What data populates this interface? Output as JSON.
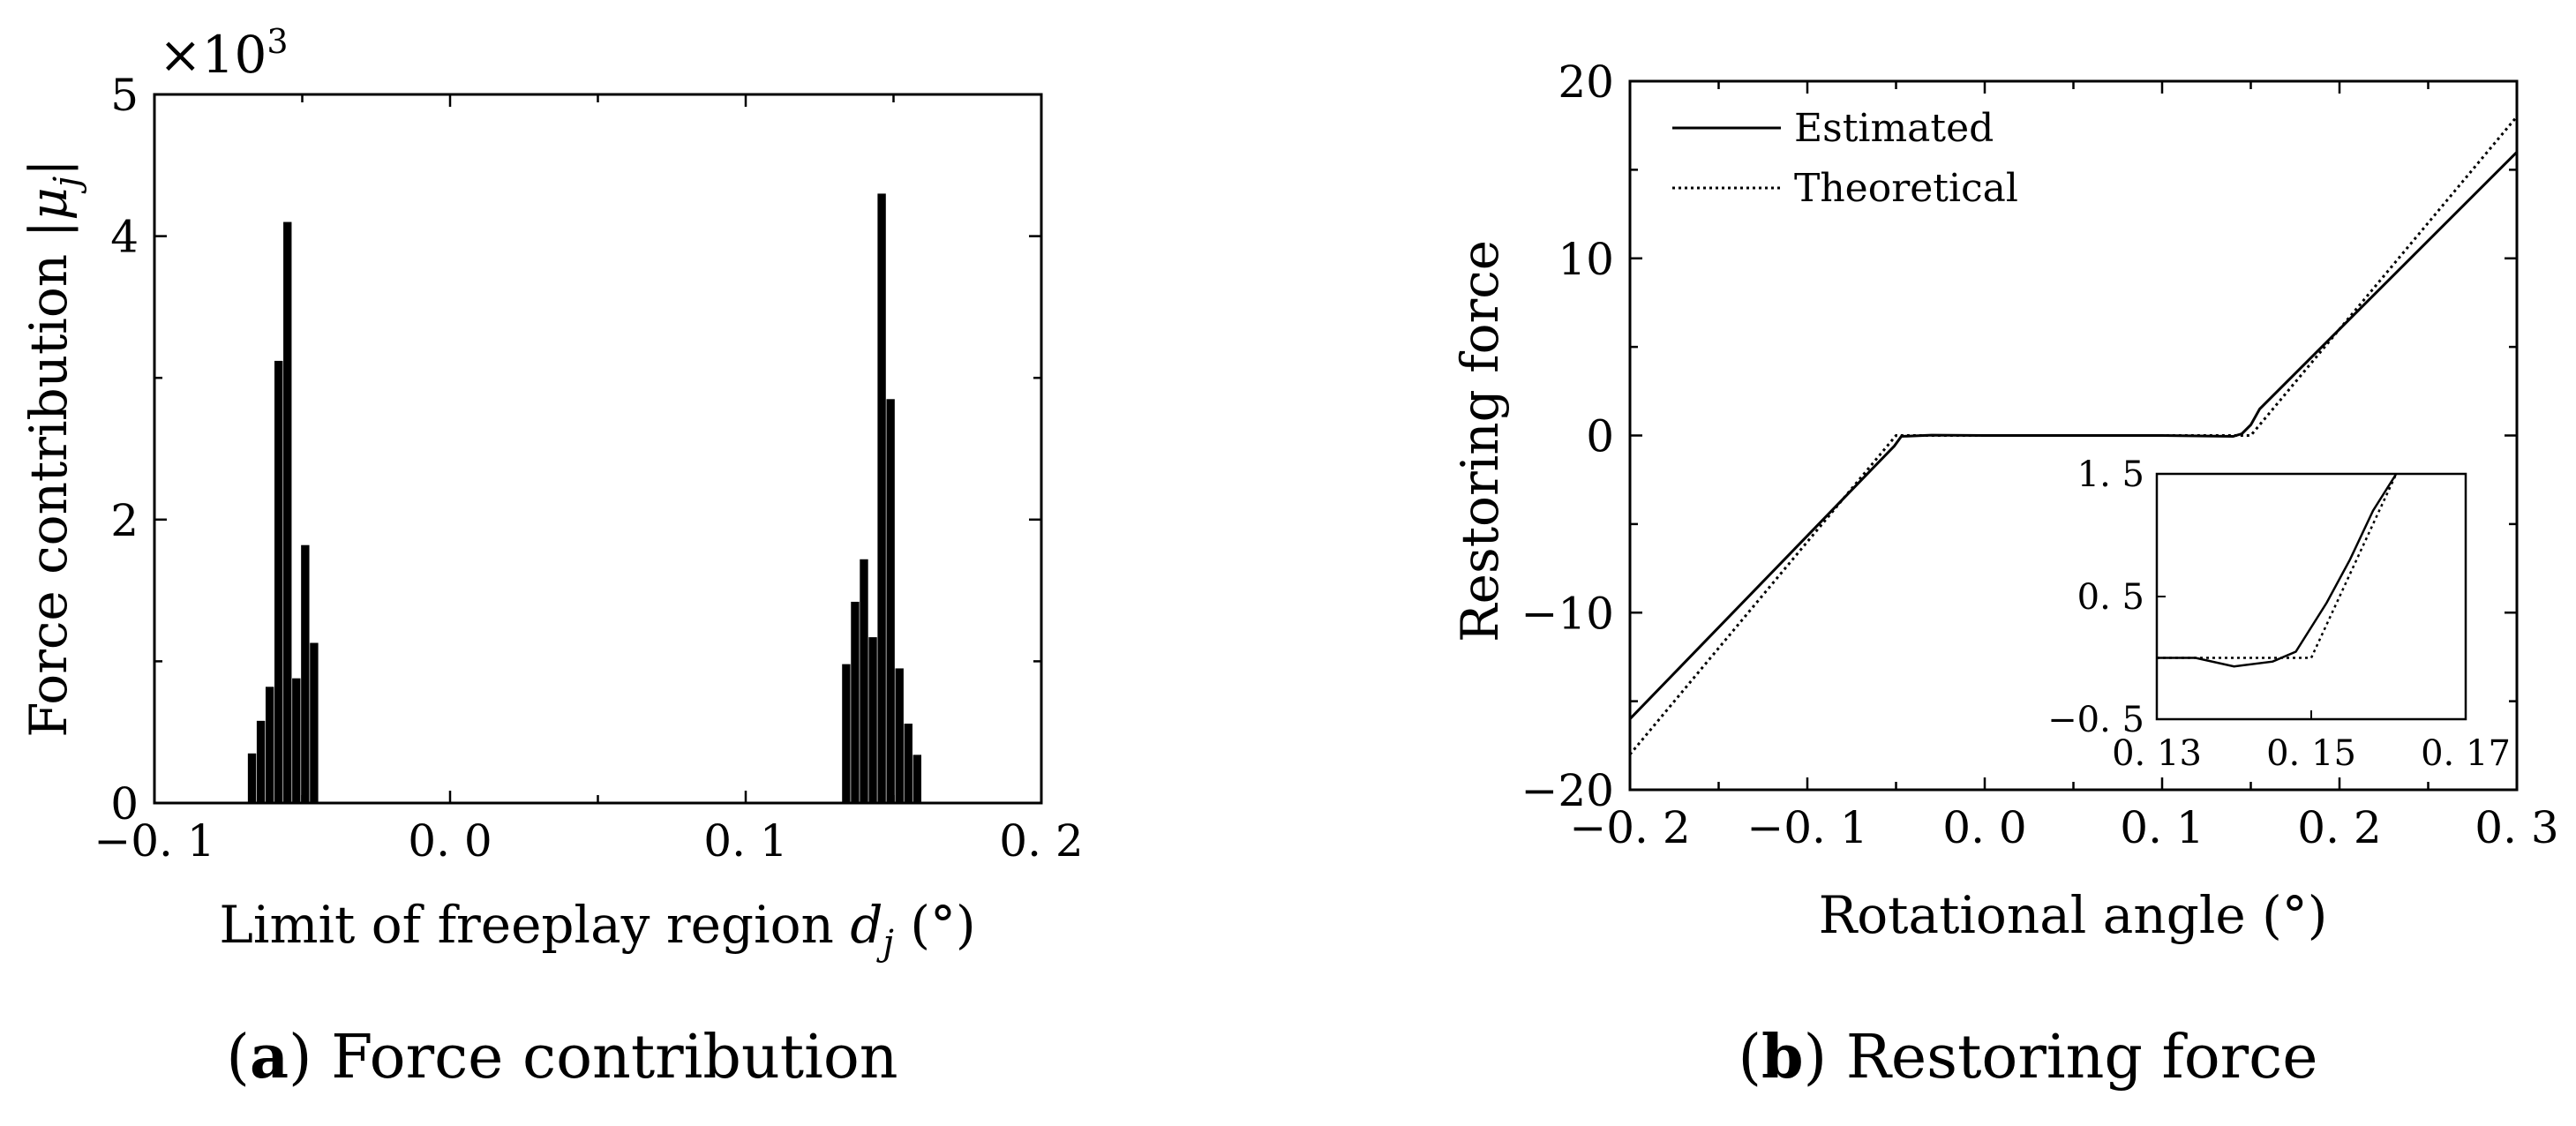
{
  "chart_data": [
    {
      "id": "a",
      "type": "bar",
      "title": "",
      "caption_letter": "a",
      "caption_text": "Force contribution",
      "xlabel": "Limit of freeplay region",
      "xlabel_symbol": "d",
      "xlabel_subscript": "j",
      "xlabel_unit": "(°)",
      "ylabel": "Force contribution",
      "ylabel_symbol": "|μ",
      "ylabel_subscript": "j",
      "ylabel_close": "|",
      "y_scale_prefix": "×10",
      "y_scale_exponent": "3",
      "xlim": [
        -0.1,
        0.2
      ],
      "ylim": [
        0,
        5000
      ],
      "xticks": [
        -0.1,
        0.0,
        0.1,
        0.2
      ],
      "xtick_labels": [
        "−0. 1",
        "0. 0",
        "0. 1",
        "0. 2"
      ],
      "yticks": [
        0,
        2000,
        4000,
        5000
      ],
      "ytick_labels": [
        "0",
        "2",
        "4",
        "5"
      ],
      "bar_width": 0.0028,
      "x": [
        -0.067,
        -0.064,
        -0.061,
        -0.058,
        -0.055,
        -0.052,
        -0.049,
        -0.046,
        -0.043,
        -0.04,
        -0.037,
        0.134,
        0.137,
        0.14,
        0.143,
        0.146,
        0.149,
        0.152,
        0.155,
        0.158,
        0.161,
        0.164
      ],
      "values": [
        350,
        580,
        820,
        3120,
        4100,
        880,
        1820,
        1130,
        0,
        0,
        0,
        980,
        1420,
        1720,
        1170,
        4300,
        2850,
        950,
        560,
        340,
        0,
        0
      ]
    },
    {
      "id": "b",
      "type": "line",
      "title": "",
      "caption_letter": "b",
      "caption_text": "Restoring force",
      "xlabel": "Rotational angle (°)",
      "ylabel": "Restoring force",
      "xlim": [
        -0.2,
        0.3
      ],
      "ylim": [
        -20,
        20
      ],
      "xticks": [
        -0.2,
        -0.1,
        0.0,
        0.1,
        0.2,
        0.3
      ],
      "xtick_labels": [
        "−0. 2",
        "−0. 1",
        "0. 0",
        "0. 1",
        "0. 2",
        "0. 3"
      ],
      "yticks": [
        -20,
        -10,
        0,
        10,
        20
      ],
      "ytick_labels": [
        "−20",
        "−10",
        "0",
        "10",
        "20"
      ],
      "legend_position": "top-left",
      "series": [
        {
          "name": "Estimated",
          "style": "solid",
          "x": [
            -0.2,
            -0.051,
            -0.047,
            -0.03,
            0.0,
            0.1,
            0.14,
            0.145,
            0.15,
            0.155,
            0.3
          ],
          "y": [
            -16.0,
            -0.6,
            -0.05,
            0.02,
            0.0,
            0.0,
            -0.05,
            0.1,
            0.6,
            1.5,
            16.0
          ]
        },
        {
          "name": "Theoretical",
          "style": "dotted",
          "x": [
            -0.2,
            -0.05,
            0.15,
            0.3
          ],
          "y": [
            -18.0,
            0.0,
            0.0,
            18.0
          ]
        }
      ],
      "inset": {
        "xlim": [
          0.13,
          0.17
        ],
        "ylim": [
          -0.5,
          1.5
        ],
        "xticks": [
          0.13,
          0.15,
          0.17
        ],
        "xtick_labels": [
          "0. 13",
          "0. 15",
          "0. 17"
        ],
        "yticks": [
          -0.5,
          0.5,
          1.5
        ],
        "ytick_labels": [
          "−0. 5",
          "0. 5",
          "1. 5"
        ],
        "series": [
          {
            "name": "Estimated",
            "style": "solid",
            "x": [
              0.13,
              0.135,
              0.14,
              0.145,
              0.148,
              0.152,
              0.155,
              0.158,
              0.161
            ],
            "y": [
              0.0,
              0.0,
              -0.07,
              -0.03,
              0.05,
              0.45,
              0.8,
              1.2,
              1.6
            ]
          },
          {
            "name": "Theoretical",
            "style": "dotted",
            "x": [
              0.13,
              0.15,
              0.161
            ],
            "y": [
              0.0,
              0.0,
              1.65
            ]
          }
        ]
      }
    }
  ]
}
